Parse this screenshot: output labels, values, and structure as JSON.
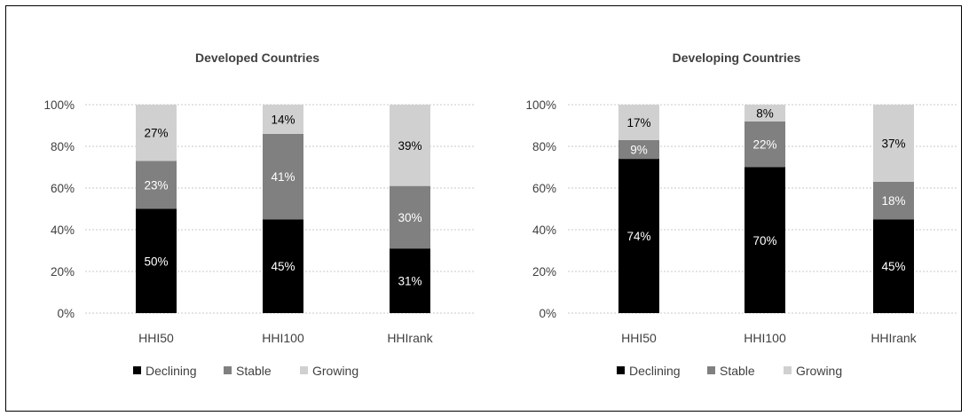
{
  "chart_data": [
    {
      "type": "bar",
      "stacked": true,
      "percent_stacked": true,
      "title": "Developed Countries",
      "categories": [
        "HHI50",
        "HHI100",
        "HHIrank"
      ],
      "ylim": [
        0,
        100
      ],
      "yticks": [
        "0%",
        "20%",
        "40%",
        "60%",
        "80%",
        "100%"
      ],
      "grid": true,
      "legend_position": "bottom",
      "series": [
        {
          "name": "Declining",
          "values": [
            50,
            45,
            31
          ],
          "labels": [
            "50%",
            "45%",
            "31%"
          ],
          "color": "#000000",
          "label_color": "#ffffff"
        },
        {
          "name": "Stable",
          "values": [
            23,
            41,
            30
          ],
          "labels": [
            "23%",
            "41%",
            "30%"
          ],
          "color": "#808080",
          "label_color": "#ffffff"
        },
        {
          "name": "Growing",
          "values": [
            27,
            14,
            39
          ],
          "labels": [
            "27%",
            "14%",
            "39%"
          ],
          "color": "#d0d0d0",
          "label_color": "#000000"
        }
      ]
    },
    {
      "type": "bar",
      "stacked": true,
      "percent_stacked": true,
      "title": "Developing Countries",
      "categories": [
        "HHI50",
        "HHI100",
        "HHIrank"
      ],
      "ylim": [
        0,
        100
      ],
      "yticks": [
        "0%",
        "20%",
        "40%",
        "60%",
        "80%",
        "100%"
      ],
      "grid": true,
      "legend_position": "bottom",
      "series": [
        {
          "name": "Declining",
          "values": [
            74,
            70,
            45
          ],
          "labels": [
            "74%",
            "70%",
            "45%"
          ],
          "color": "#000000",
          "label_color": "#ffffff"
        },
        {
          "name": "Stable",
          "values": [
            9,
            22,
            18
          ],
          "labels": [
            "9%",
            "22%",
            "18%"
          ],
          "color": "#808080",
          "label_color": "#ffffff"
        },
        {
          "name": "Growing",
          "values": [
            17,
            8,
            37
          ],
          "labels": [
            "17%",
            "8%",
            "37%"
          ],
          "color": "#d0d0d0",
          "label_color": "#000000"
        }
      ]
    }
  ]
}
